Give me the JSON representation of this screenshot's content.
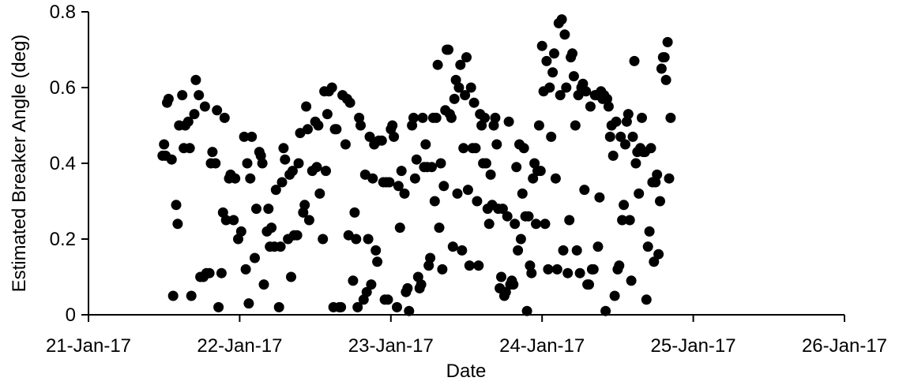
{
  "chart_data": {
    "type": "scatter",
    "title": "",
    "xlabel": "Date",
    "ylabel": "Estimated Breaker Angle (deg)",
    "x_ticks": [
      "21-Jan-17",
      "22-Jan-17",
      "23-Jan-17",
      "24-Jan-17",
      "25-Jan-17",
      "26-Jan-17"
    ],
    "y_ticks": [
      "0",
      "0.2",
      "0.4",
      "0.6",
      "0.8"
    ],
    "xlim": [
      "2017-01-21",
      "2017-01-26"
    ],
    "ylim": [
      0,
      0.8
    ],
    "grid": false,
    "legend": "none",
    "point_color": "#000000",
    "x_unit": "date (fractional days from 21-Jan-17 00:00)",
    "points": [
      [
        0.49,
        0.42
      ],
      [
        0.5,
        0.45
      ],
      [
        0.51,
        0.42
      ],
      [
        0.52,
        0.56
      ],
      [
        0.53,
        0.57
      ],
      [
        0.55,
        0.41
      ],
      [
        0.56,
        0.05
      ],
      [
        0.58,
        0.29
      ],
      [
        0.59,
        0.24
      ],
      [
        0.6,
        0.5
      ],
      [
        0.62,
        0.58
      ],
      [
        0.63,
        0.44
      ],
      [
        0.64,
        0.5
      ],
      [
        0.66,
        0.51
      ],
      [
        0.67,
        0.44
      ],
      [
        0.68,
        0.05
      ],
      [
        0.7,
        0.53
      ],
      [
        0.71,
        0.62
      ],
      [
        0.73,
        0.58
      ],
      [
        0.74,
        0.1
      ],
      [
        0.76,
        0.1
      ],
      [
        0.77,
        0.55
      ],
      [
        0.78,
        0.11
      ],
      [
        0.8,
        0.11
      ],
      [
        0.81,
        0.4
      ],
      [
        0.82,
        0.43
      ],
      [
        0.84,
        0.4
      ],
      [
        0.85,
        0.54
      ],
      [
        0.86,
        0.02
      ],
      [
        0.88,
        0.11
      ],
      [
        0.89,
        0.27
      ],
      [
        0.9,
        0.52
      ],
      [
        0.91,
        0.25
      ],
      [
        0.93,
        0.36
      ],
      [
        0.94,
        0.37
      ],
      [
        0.96,
        0.25
      ],
      [
        0.97,
        0.36
      ],
      [
        0.99,
        0.2
      ],
      [
        1.01,
        0.22
      ],
      [
        1.03,
        0.47
      ],
      [
        1.04,
        0.12
      ],
      [
        1.05,
        0.4
      ],
      [
        1.06,
        0.03
      ],
      [
        1.07,
        0.36
      ],
      [
        1.08,
        0.47
      ],
      [
        1.1,
        0.15
      ],
      [
        1.11,
        0.28
      ],
      [
        1.13,
        0.43
      ],
      [
        1.14,
        0.42
      ],
      [
        1.15,
        0.4
      ],
      [
        1.16,
        0.08
      ],
      [
        1.18,
        0.22
      ],
      [
        1.19,
        0.28
      ],
      [
        1.2,
        0.18
      ],
      [
        1.21,
        0.23
      ],
      [
        1.23,
        0.18
      ],
      [
        1.24,
        0.33
      ],
      [
        1.26,
        0.02
      ],
      [
        1.27,
        0.18
      ],
      [
        1.28,
        0.35
      ],
      [
        1.29,
        0.44
      ],
      [
        1.3,
        0.41
      ],
      [
        1.32,
        0.2
      ],
      [
        1.33,
        0.37
      ],
      [
        1.34,
        0.1
      ],
      [
        1.35,
        0.38
      ],
      [
        1.36,
        0.21
      ],
      [
        1.38,
        0.21
      ],
      [
        1.39,
        0.4
      ],
      [
        1.4,
        0.48
      ],
      [
        1.42,
        0.27
      ],
      [
        1.43,
        0.29
      ],
      [
        1.44,
        0.55
      ],
      [
        1.45,
        0.49
      ],
      [
        1.46,
        0.25
      ],
      [
        1.48,
        0.38
      ],
      [
        1.5,
        0.51
      ],
      [
        1.51,
        0.39
      ],
      [
        1.52,
        0.5
      ],
      [
        1.53,
        0.32
      ],
      [
        1.55,
        0.2
      ],
      [
        1.56,
        0.59
      ],
      [
        1.57,
        0.38
      ],
      [
        1.58,
        0.53
      ],
      [
        1.59,
        0.59
      ],
      [
        1.61,
        0.6
      ],
      [
        1.62,
        0.02
      ],
      [
        1.63,
        0.49
      ],
      [
        1.64,
        0.49
      ],
      [
        1.66,
        0.02
      ],
      [
        1.67,
        0.02
      ],
      [
        1.68,
        0.58
      ],
      [
        1.7,
        0.45
      ],
      [
        1.71,
        0.57
      ],
      [
        1.72,
        0.21
      ],
      [
        1.73,
        0.56
      ],
      [
        1.75,
        0.09
      ],
      [
        1.76,
        0.27
      ],
      [
        1.77,
        0.2
      ],
      [
        1.78,
        0.02
      ],
      [
        1.79,
        0.52
      ],
      [
        1.8,
        0.5
      ],
      [
        1.82,
        0.04
      ],
      [
        1.83,
        0.37
      ],
      [
        1.84,
        0.06
      ],
      [
        1.85,
        0.2
      ],
      [
        1.86,
        0.47
      ],
      [
        1.87,
        0.08
      ],
      [
        1.88,
        0.36
      ],
      [
        1.89,
        0.45
      ],
      [
        1.9,
        0.17
      ],
      [
        1.91,
        0.14
      ],
      [
        1.92,
        0.46
      ],
      [
        1.94,
        0.46
      ],
      [
        1.95,
        0.35
      ],
      [
        1.96,
        0.04
      ],
      [
        1.97,
        0.35
      ],
      [
        1.98,
        0.04
      ],
      [
        1.99,
        0.35
      ],
      [
        2.0,
        0.49
      ],
      [
        2.01,
        0.5
      ],
      [
        2.02,
        0.47
      ],
      [
        2.04,
        0.02
      ],
      [
        2.05,
        0.34
      ],
      [
        2.06,
        0.23
      ],
      [
        2.07,
        0.38
      ],
      [
        2.09,
        0.32
      ],
      [
        2.1,
        0.06
      ],
      [
        2.11,
        0.07
      ],
      [
        2.12,
        0.01
      ],
      [
        2.14,
        0.5
      ],
      [
        2.15,
        0.52
      ],
      [
        2.16,
        0.36
      ],
      [
        2.17,
        0.41
      ],
      [
        2.18,
        0.1
      ],
      [
        2.19,
        0.07
      ],
      [
        2.2,
        0.08
      ],
      [
        2.21,
        0.52
      ],
      [
        2.22,
        0.39
      ],
      [
        2.23,
        0.45
      ],
      [
        2.24,
        0.39
      ],
      [
        2.25,
        0.13
      ],
      [
        2.26,
        0.15
      ],
      [
        2.27,
        0.39
      ],
      [
        2.28,
        0.52
      ],
      [
        2.29,
        0.3
      ],
      [
        2.3,
        0.52
      ],
      [
        2.31,
        0.66
      ],
      [
        2.32,
        0.23
      ],
      [
        2.33,
        0.4
      ],
      [
        2.34,
        0.12
      ],
      [
        2.35,
        0.34
      ],
      [
        2.36,
        0.54
      ],
      [
        2.37,
        0.7
      ],
      [
        2.38,
        0.7
      ],
      [
        2.39,
        0.53
      ],
      [
        2.4,
        0.52
      ],
      [
        2.41,
        0.18
      ],
      [
        2.42,
        0.57
      ],
      [
        2.43,
        0.62
      ],
      [
        2.44,
        0.32
      ],
      [
        2.45,
        0.6
      ],
      [
        2.46,
        0.66
      ],
      [
        2.47,
        0.17
      ],
      [
        2.48,
        0.44
      ],
      [
        2.49,
        0.58
      ],
      [
        2.5,
        0.68
      ],
      [
        2.51,
        0.33
      ],
      [
        2.52,
        0.13
      ],
      [
        2.53,
        0.6
      ],
      [
        2.54,
        0.44
      ],
      [
        2.55,
        0.56
      ],
      [
        2.56,
        0.44
      ],
      [
        2.57,
        0.3
      ],
      [
        2.58,
        0.13
      ],
      [
        2.59,
        0.53
      ],
      [
        2.6,
        0.5
      ],
      [
        2.61,
        0.4
      ],
      [
        2.62,
        0.52
      ],
      [
        2.63,
        0.4
      ],
      [
        2.64,
        0.28
      ],
      [
        2.65,
        0.24
      ],
      [
        2.66,
        0.37
      ],
      [
        2.67,
        0.29
      ],
      [
        2.68,
        0.5
      ],
      [
        2.69,
        0.52
      ],
      [
        2.7,
        0.45
      ],
      [
        2.71,
        0.28
      ],
      [
        2.72,
        0.07
      ],
      [
        2.73,
        0.1
      ],
      [
        2.74,
        0.28
      ],
      [
        2.75,
        0.05
      ],
      [
        2.76,
        0.06
      ],
      [
        2.77,
        0.26
      ],
      [
        2.78,
        0.51
      ],
      [
        2.79,
        0.08
      ],
      [
        2.8,
        0.09
      ],
      [
        2.81,
        0.08
      ],
      [
        2.82,
        0.24
      ],
      [
        2.83,
        0.39
      ],
      [
        2.84,
        0.17
      ],
      [
        2.85,
        0.45
      ],
      [
        2.86,
        0.2
      ],
      [
        2.87,
        0.32
      ],
      [
        2.88,
        0.44
      ],
      [
        2.89,
        0.26
      ],
      [
        2.9,
        0.01
      ],
      [
        2.91,
        0.26
      ],
      [
        2.92,
        0.13
      ],
      [
        2.93,
        0.11
      ],
      [
        2.94,
        0.36
      ],
      [
        2.95,
        0.4
      ],
      [
        2.96,
        0.24
      ],
      [
        2.97,
        0.38
      ],
      [
        2.98,
        0.5
      ],
      [
        2.99,
        0.38
      ],
      [
        3.0,
        0.71
      ],
      [
        3.01,
        0.59
      ],
      [
        3.02,
        0.24
      ],
      [
        3.03,
        0.67
      ],
      [
        3.04,
        0.12
      ],
      [
        3.05,
        0.6
      ],
      [
        3.06,
        0.47
      ],
      [
        3.07,
        0.64
      ],
      [
        3.08,
        0.69
      ],
      [
        3.09,
        0.36
      ],
      [
        3.1,
        0.12
      ],
      [
        3.11,
        0.77
      ],
      [
        3.12,
        0.58
      ],
      [
        3.13,
        0.78
      ],
      [
        3.14,
        0.17
      ],
      [
        3.15,
        0.74
      ],
      [
        3.16,
        0.6
      ],
      [
        3.17,
        0.11
      ],
      [
        3.18,
        0.25
      ],
      [
        3.19,
        0.68
      ],
      [
        3.2,
        0.69
      ],
      [
        3.21,
        0.63
      ],
      [
        3.22,
        0.5
      ],
      [
        3.23,
        0.17
      ],
      [
        3.24,
        0.58
      ],
      [
        3.25,
        0.11
      ],
      [
        3.26,
        0.6
      ],
      [
        3.27,
        0.61
      ],
      [
        3.28,
        0.33
      ],
      [
        3.29,
        0.59
      ],
      [
        3.3,
        0.08
      ],
      [
        3.31,
        0.08
      ],
      [
        3.32,
        0.55
      ],
      [
        3.33,
        0.12
      ],
      [
        3.34,
        0.12
      ],
      [
        3.35,
        0.58
      ],
      [
        3.36,
        0.58
      ],
      [
        3.37,
        0.18
      ],
      [
        3.38,
        0.31
      ],
      [
        3.39,
        0.59
      ],
      [
        3.4,
        0.57
      ],
      [
        3.41,
        0.58
      ],
      [
        3.42,
        0.01
      ],
      [
        3.43,
        0.57
      ],
      [
        3.44,
        0.55
      ],
      [
        3.45,
        0.47
      ],
      [
        3.46,
        0.5
      ],
      [
        3.47,
        0.42
      ],
      [
        3.48,
        0.05
      ],
      [
        3.49,
        0.51
      ],
      [
        3.5,
        0.12
      ],
      [
        3.51,
        0.13
      ],
      [
        3.52,
        0.47
      ],
      [
        3.53,
        0.25
      ],
      [
        3.54,
        0.29
      ],
      [
        3.55,
        0.45
      ],
      [
        3.56,
        0.51
      ],
      [
        3.57,
        0.53
      ],
      [
        3.58,
        0.25
      ],
      [
        3.59,
        0.09
      ],
      [
        3.6,
        0.47
      ],
      [
        3.61,
        0.67
      ],
      [
        3.62,
        0.4
      ],
      [
        3.63,
        0.43
      ],
      [
        3.64,
        0.32
      ],
      [
        3.65,
        0.44
      ],
      [
        3.66,
        0.52
      ],
      [
        3.67,
        0.43
      ],
      [
        3.68,
        0.43
      ],
      [
        3.69,
        0.04
      ],
      [
        3.7,
        0.18
      ],
      [
        3.71,
        0.22
      ],
      [
        3.72,
        0.44
      ],
      [
        3.73,
        0.35
      ],
      [
        3.74,
        0.14
      ],
      [
        3.75,
        0.35
      ],
      [
        3.76,
        0.37
      ],
      [
        3.77,
        0.16
      ],
      [
        3.78,
        0.3
      ],
      [
        3.79,
        0.65
      ],
      [
        3.8,
        0.68
      ],
      [
        3.81,
        0.68
      ],
      [
        3.82,
        0.62
      ],
      [
        3.83,
        0.72
      ],
      [
        3.84,
        0.36
      ],
      [
        3.85,
        0.52
      ]
    ]
  }
}
